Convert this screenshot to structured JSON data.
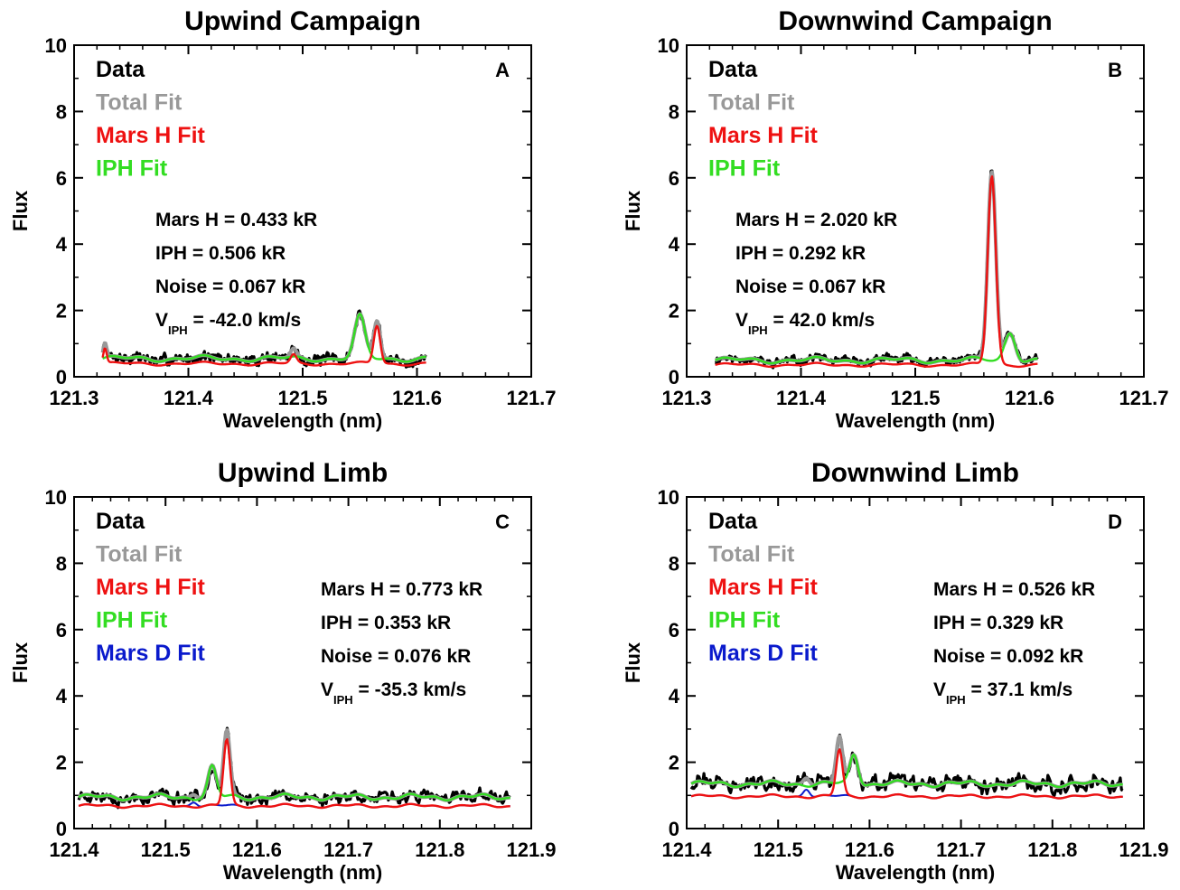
{
  "chart_data": [
    {
      "panel": "A",
      "type": "line",
      "title": "Upwind Campaign",
      "xlabel": "Wavelength (nm)",
      "ylabel": "Flux",
      "xlim": [
        121.3,
        121.7
      ],
      "ylim": [
        0,
        10
      ],
      "xticks": [
        "121.3",
        "121.4",
        "121.5",
        "121.6",
        "121.7"
      ],
      "yticks": [
        "0",
        "2",
        "4",
        "6",
        "8",
        "10"
      ],
      "legend": [
        "Data",
        "Total Fit",
        "Mars H Fit",
        "IPH Fit"
      ],
      "annotations": [
        "Mars H = 0.433 kR",
        "IPH = 0.506 kR",
        "Noise = 0.067 kR"
      ],
      "velocity_label": {
        "prefix": "V",
        "sub": "IPH",
        "value": " = -42.0 km/s"
      },
      "range": [
        121.325,
        121.608
      ],
      "base": 0.55,
      "peaks": {
        "mars": [
          [
            121.565,
            1.15,
            0.0028
          ],
          [
            121.492,
            0.25,
            0.0025
          ],
          [
            121.327,
            0.45,
            0.0015
          ]
        ],
        "iph": [
          [
            121.55,
            1.25,
            0.0045
          ]
        ]
      },
      "noise": 0.07,
      "seed": 7
    },
    {
      "panel": "B",
      "type": "line",
      "title": "Downwind Campaign",
      "xlabel": "Wavelength (nm)",
      "ylabel": "Flux",
      "xlim": [
        121.3,
        121.7
      ],
      "ylim": [
        0,
        10
      ],
      "xticks": [
        "121.3",
        "121.4",
        "121.5",
        "121.6",
        "121.7"
      ],
      "yticks": [
        "0",
        "2",
        "4",
        "6",
        "8",
        "10"
      ],
      "legend": [
        "Data",
        "Total Fit",
        "Mars H Fit",
        "IPH Fit"
      ],
      "annotations": [
        "Mars H = 2.020 kR",
        "IPH = 0.292 kR",
        "Noise = 0.067 kR"
      ],
      "velocity_label": {
        "prefix": "V",
        "sub": "IPH",
        "value": " = 42.0 km/s"
      },
      "range": [
        121.325,
        121.607
      ],
      "base": 0.5,
      "peaks": {
        "mars": [
          [
            121.567,
            5.7,
            0.0035
          ]
        ],
        "iph": [
          [
            121.583,
            0.85,
            0.0045
          ]
        ]
      },
      "noise": 0.05,
      "seed": 11
    },
    {
      "panel": "C",
      "type": "line",
      "title": "Upwind Limb",
      "xlabel": "Wavelength (nm)",
      "ylabel": "Flux",
      "xlim": [
        121.4,
        121.9
      ],
      "ylim": [
        0,
        10
      ],
      "xticks": [
        "121.4",
        "121.5",
        "121.6",
        "121.7",
        "121.8",
        "121.9"
      ],
      "yticks": [
        "0",
        "2",
        "4",
        "6",
        "8",
        "10"
      ],
      "legend": [
        "Data",
        "Total Fit",
        "Mars H Fit",
        "IPH Fit",
        "Mars D Fit"
      ],
      "annotations": [
        "Mars H = 0.773 kR",
        "IPH = 0.353 kR",
        "Noise = 0.076 kR"
      ],
      "velocity_label": {
        "prefix": "V",
        "sub": "IPH",
        "value": " = -35.3 km/s"
      },
      "range": [
        121.405,
        121.877
      ],
      "base": 0.95,
      "peaks": {
        "mars": [
          [
            121.567,
            2.0,
            0.0035
          ]
        ],
        "iph": [
          [
            121.551,
            0.9,
            0.0045
          ]
        ],
        "d": [
          [
            121.531,
            0.15,
            0.0035
          ]
        ]
      },
      "noise": 0.08,
      "seed": 23
    },
    {
      "panel": "D",
      "type": "line",
      "title": "Downwind Limb",
      "xlabel": "Wavelength (nm)",
      "ylabel": "Flux",
      "xlim": [
        121.4,
        121.9
      ],
      "ylim": [
        0,
        10
      ],
      "xticks": [
        "121.4",
        "121.5",
        "121.6",
        "121.7",
        "121.8",
        "121.9"
      ],
      "yticks": [
        "0",
        "2",
        "4",
        "6",
        "8",
        "10"
      ],
      "legend": [
        "Data",
        "Total Fit",
        "Mars H Fit",
        "IPH Fit",
        "Mars D Fit"
      ],
      "annotations": [
        "Mars H = 0.526 kR",
        "IPH = 0.329 kR",
        "Noise = 0.092 kR"
      ],
      "velocity_label": {
        "prefix": "V",
        "sub": "IPH",
        "value": " = 37.1 km/s"
      },
      "range": [
        121.405,
        121.877
      ],
      "base": 1.35,
      "peaks": {
        "mars": [
          [
            121.567,
            1.4,
            0.0035
          ]
        ],
        "iph": [
          [
            121.583,
            0.9,
            0.0045
          ]
        ],
        "d": [
          [
            121.531,
            0.25,
            0.0035
          ]
        ]
      },
      "noise": 0.1,
      "seed": 31
    }
  ],
  "colors": {
    "data": "#000000",
    "total_fit": "#999999",
    "mars_h_fit": "#ee1111",
    "iph_fit": "#33dd22",
    "mars_d_fit": "#0a1acc"
  },
  "panel_letters": [
    "A",
    "B",
    "C",
    "D"
  ]
}
